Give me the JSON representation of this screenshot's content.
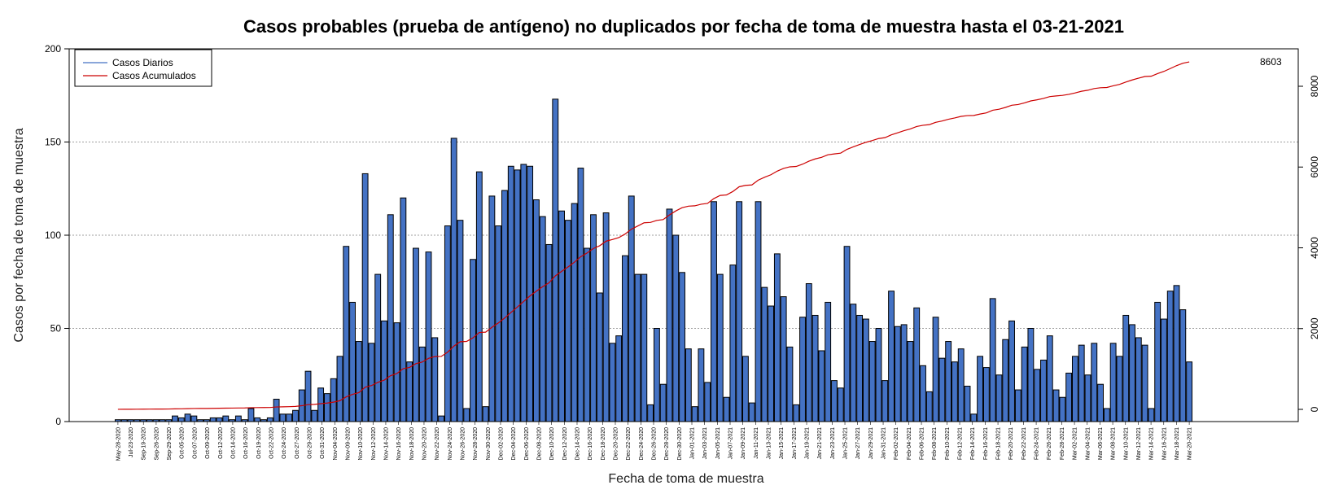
{
  "chart_data": {
    "type": "bar",
    "title": "Casos probables (prueba de antígeno) no duplicados por fecha de toma de muestra hasta el 03-21-2021",
    "xlabel": "Fecha de toma de muestra",
    "ylabel": "Casos por fecha de toma de muestra",
    "ylim": [
      0,
      200
    ],
    "y_ticks": [
      0,
      50,
      100,
      150,
      200
    ],
    "y2lim": [
      0,
      8603
    ],
    "y2_ticks": [
      0,
      2000,
      4000,
      6000,
      8000
    ],
    "grid": "horizontal dotted",
    "legend_position": "top-left",
    "x_tick_labels": [
      "May-28-2020",
      "Jul-23-2020",
      "Sep-19-2020",
      "Sep-26-2020",
      "Sep-29-2020",
      "Oct-05-2020",
      "Oct-07-2020",
      "Oct-09-2020",
      "Oct-12-2020",
      "Oct-14-2020",
      "Oct-16-2020",
      "Oct-19-2020",
      "Oct-22-2020",
      "Oct-24-2020",
      "Oct-27-2020",
      "Oct-29-2020",
      "Oct-31-2020",
      "Nov-04-2020",
      "Nov-09-2020",
      "Nov-10-2020",
      "Nov-12-2020",
      "Nov-14-2020",
      "Nov-16-2020",
      "Nov-18-2020",
      "Nov-20-2020",
      "Nov-22-2020",
      "Nov-24-2020",
      "Nov-26-2020",
      "Nov-28-2020",
      "Nov-30-2020",
      "Dec-02-2020",
      "Dec-04-2020",
      "Dec-06-2020",
      "Dec-08-2020",
      "Dec-10-2020",
      "Dec-12-2020",
      "Dec-14-2020",
      "Dec-16-2020",
      "Dec-18-2020",
      "Dec-20-2020",
      "Dec-22-2020",
      "Dec-24-2020",
      "Dec-26-2020",
      "Dec-28-2020",
      "Dec-30-2020",
      "Jan-01-2021",
      "Jan-03-2021",
      "Jan-05-2021",
      "Jan-07-2021",
      "Jan-09-2021",
      "Jan-11-2021",
      "Jan-13-2021",
      "Jan-15-2021",
      "Jan-17-2021",
      "Jan-19-2021",
      "Jan-21-2021",
      "Jan-23-2021",
      "Jan-25-2021",
      "Jan-27-2021",
      "Jan-29-2021",
      "Jan-31-2021",
      "Feb-02-2021",
      "Feb-04-2021",
      "Feb-06-2021",
      "Feb-08-2021",
      "Feb-10-2021",
      "Feb-12-2021",
      "Feb-14-2021",
      "Feb-16-2021",
      "Feb-18-2021",
      "Feb-20-2021",
      "Feb-22-2021",
      "Feb-24-2021",
      "Feb-26-2021",
      "Feb-28-2021",
      "Mar-02-2021",
      "Mar-04-2021",
      "Mar-06-2021",
      "Mar-08-2021",
      "Mar-10-2021",
      "Mar-12-2021",
      "Mar-14-2021",
      "Mar-16-2021",
      "Mar-18-2021",
      "Mar-20-2021"
    ],
    "series": [
      {
        "name": "Casos Diarios",
        "color": "#4472c4",
        "values": [
          1,
          1,
          1,
          1,
          1,
          1,
          1,
          1,
          1,
          3,
          2,
          4,
          3,
          1,
          1,
          2,
          2,
          3,
          1,
          3,
          1,
          7,
          2,
          1,
          2,
          12,
          4,
          4,
          6,
          17,
          27,
          6,
          18,
          15,
          23,
          35,
          94,
          64,
          43,
          133,
          42,
          79,
          54,
          111,
          53,
          120,
          32,
          93,
          40,
          91,
          45,
          3,
          105,
          152,
          108,
          7,
          87,
          134,
          8,
          121,
          105,
          124,
          137,
          135,
          138,
          137,
          119,
          110,
          95,
          173,
          113,
          108,
          117,
          136,
          93,
          111,
          69,
          112,
          42,
          46,
          89,
          121,
          79,
          79,
          9,
          50,
          20,
          114,
          100,
          80,
          39,
          8,
          39,
          21,
          118,
          79,
          13,
          84,
          118,
          35,
          10,
          118,
          72,
          62,
          90,
          67,
          40,
          9,
          56,
          74,
          57,
          38,
          64,
          22,
          18,
          94,
          63,
          57,
          55,
          43,
          50,
          22,
          70,
          51,
          52,
          43,
          61,
          30,
          16,
          56,
          34,
          43,
          32,
          39,
          19,
          4,
          35,
          29,
          66,
          25,
          44,
          54,
          17,
          40,
          50,
          28,
          33,
          46,
          17,
          13,
          26,
          35,
          41,
          25,
          42,
          20,
          7,
          42,
          35,
          57,
          52,
          45,
          41,
          7,
          64,
          55,
          70,
          73,
          60,
          32
        ]
      },
      {
        "name": "Casos Acumulados",
        "color": "#cc0000",
        "axis": "right",
        "end_label": "8603"
      }
    ]
  }
}
